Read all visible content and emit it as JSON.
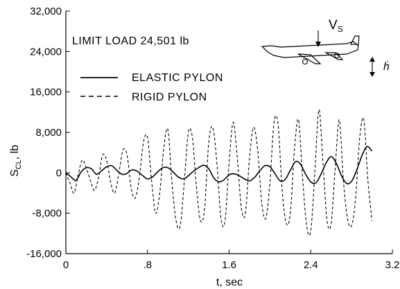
{
  "chart_data": {
    "type": "line",
    "xlabel": "t, sec",
    "ylabel_main": "S",
    "ylabel_sub": "CL",
    "ylabel_unit": ", lb",
    "xlim": [
      0,
      3.2
    ],
    "ylim": [
      -16000,
      32000
    ],
    "xticks": [
      0,
      0.8,
      1.6,
      2.4,
      3.2
    ],
    "xtick_labels": [
      "0",
      ".8",
      "1.6",
      "2.4",
      "3.2"
    ],
    "yticks": [
      -16000,
      -8000,
      0,
      8000,
      16000,
      24000,
      32000
    ],
    "ytick_labels": [
      "-16,000",
      "-8,000",
      "0",
      "8,000",
      "16,000",
      "24,000",
      "32,000"
    ],
    "annotation": "LIMIT LOAD 24,501 lb",
    "inset": {
      "velocity_label": "V",
      "velocity_sub": "S",
      "motion_label": "ḣ"
    },
    "series": [
      {
        "name": "ELASTIC PYLON",
        "style": "solid",
        "x": [
          0.0,
          0.05,
          0.1,
          0.15,
          0.2,
          0.25,
          0.3,
          0.35,
          0.4,
          0.45,
          0.5,
          0.55,
          0.6,
          0.65,
          0.7,
          0.75,
          0.8,
          0.85,
          0.9,
          0.95,
          1.0,
          1.05,
          1.1,
          1.15,
          1.2,
          1.25,
          1.3,
          1.35,
          1.4,
          1.45,
          1.5,
          1.55,
          1.6,
          1.65,
          1.7,
          1.75,
          1.8,
          1.85,
          1.9,
          1.95,
          2.0,
          2.05,
          2.1,
          2.15,
          2.2,
          2.25,
          2.3,
          2.35,
          2.4,
          2.45,
          2.5,
          2.55,
          2.6,
          2.65,
          2.7,
          2.75,
          2.8,
          2.85,
          2.9,
          2.95,
          3.0
        ],
        "y": [
          0,
          -800,
          -1500,
          200,
          1000,
          800,
          -300,
          400,
          1200,
          1400,
          500,
          -300,
          -100,
          600,
          300,
          -500,
          -1200,
          -800,
          200,
          1000,
          1000,
          200,
          -800,
          -1200,
          -600,
          300,
          1000,
          1500,
          800,
          -1000,
          -1800,
          -1400,
          -400,
          -200,
          -600,
          -1200,
          -1600,
          -900,
          400,
          1400,
          1200,
          -200,
          -1600,
          -1300,
          500,
          2200,
          1700,
          -300,
          -1800,
          -2000,
          -300,
          1900,
          3200,
          1900,
          -500,
          -2100,
          -1700,
          500,
          3300,
          5200,
          4300
        ]
      },
      {
        "name": "RIGID PYLON",
        "style": "dashed",
        "x": [
          0.0,
          0.04,
          0.08,
          0.12,
          0.16,
          0.2,
          0.24,
          0.28,
          0.32,
          0.36,
          0.4,
          0.44,
          0.48,
          0.52,
          0.56,
          0.6,
          0.64,
          0.68,
          0.72,
          0.76,
          0.8,
          0.84,
          0.88,
          0.92,
          0.96,
          1.0,
          1.04,
          1.08,
          1.12,
          1.16,
          1.2,
          1.24,
          1.28,
          1.32,
          1.36,
          1.4,
          1.44,
          1.48,
          1.52,
          1.56,
          1.6,
          1.64,
          1.68,
          1.72,
          1.76,
          1.8,
          1.84,
          1.88,
          1.92,
          1.96,
          2.0,
          2.04,
          2.08,
          2.12,
          2.16,
          2.2,
          2.24,
          2.28,
          2.32,
          2.36,
          2.4,
          2.44,
          2.48,
          2.52,
          2.56,
          2.6,
          2.64,
          2.68,
          2.72,
          2.76,
          2.8,
          2.84,
          2.88,
          2.92,
          2.96,
          3.0
        ],
        "y": [
          0,
          -2000,
          -4000,
          -500,
          2500,
          1000,
          -1500,
          -3500,
          -1000,
          3500,
          2500,
          -2000,
          -4000,
          0,
          4500,
          3500,
          -3000,
          -5000,
          -1000,
          6000,
          7000,
          -1500,
          -8000,
          -4000,
          5000,
          8500,
          -2000,
          -9500,
          -10500,
          -2000,
          8000,
          7000,
          -3000,
          -9500,
          -7000,
          6000,
          9000,
          2000,
          -9000,
          -9500,
          2000,
          10000,
          3000,
          -7000,
          -8000,
          3000,
          9000,
          4500,
          -6000,
          -9000,
          -2000,
          10000,
          9500,
          -3500,
          -10000,
          -8000,
          4500,
          10500,
          -1000,
          -10500,
          -11500,
          0,
          12500,
          2000,
          -9500,
          -10000,
          1000,
          10500,
          -1500,
          -9000,
          -10500,
          -5000,
          7000,
          10500,
          -1500,
          -9500
        ]
      }
    ]
  }
}
